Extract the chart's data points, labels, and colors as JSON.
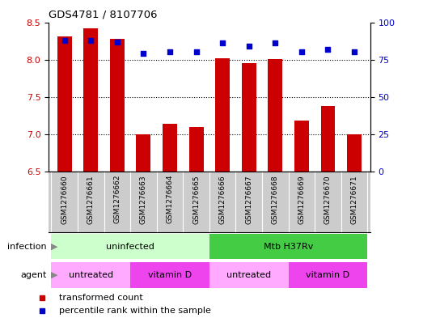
{
  "title": "GDS4781 / 8107706",
  "samples": [
    "GSM1276660",
    "GSM1276661",
    "GSM1276662",
    "GSM1276663",
    "GSM1276664",
    "GSM1276665",
    "GSM1276666",
    "GSM1276667",
    "GSM1276668",
    "GSM1276669",
    "GSM1276670",
    "GSM1276671"
  ],
  "transformed_count": [
    8.31,
    8.42,
    8.28,
    7.0,
    7.14,
    7.1,
    8.02,
    7.95,
    8.01,
    7.18,
    7.38,
    7.0
  ],
  "percentile_rank": [
    88,
    88,
    87,
    79,
    80,
    80,
    86,
    84,
    86,
    80,
    82,
    80
  ],
  "ylim_left": [
    6.5,
    8.5
  ],
  "ylim_right": [
    0,
    100
  ],
  "yticks_left": [
    6.5,
    7.0,
    7.5,
    8.0,
    8.5
  ],
  "yticks_right": [
    0,
    25,
    50,
    75,
    100
  ],
  "bar_color": "#cc0000",
  "dot_color": "#0000cc",
  "infection_labels": [
    "uninfected",
    "Mtb H37Rv"
  ],
  "infection_ranges": [
    [
      0,
      5
    ],
    [
      6,
      11
    ]
  ],
  "infection_color_light": "#ccffcc",
  "infection_color_medium": "#44cc44",
  "agent_labels": [
    "untreated",
    "vitamin D",
    "untreated",
    "vitamin D"
  ],
  "agent_ranges": [
    [
      0,
      2
    ],
    [
      3,
      5
    ],
    [
      6,
      8
    ],
    [
      9,
      11
    ]
  ],
  "agent_color_light": "#ffaaff",
  "agent_color_bright": "#ee44ee",
  "legend_items": [
    "transformed count",
    "percentile rank within the sample"
  ],
  "background_color": "#ffffff",
  "plot_bg": "#ffffff",
  "sample_band_color": "#cccccc",
  "grid_color": "#000000"
}
